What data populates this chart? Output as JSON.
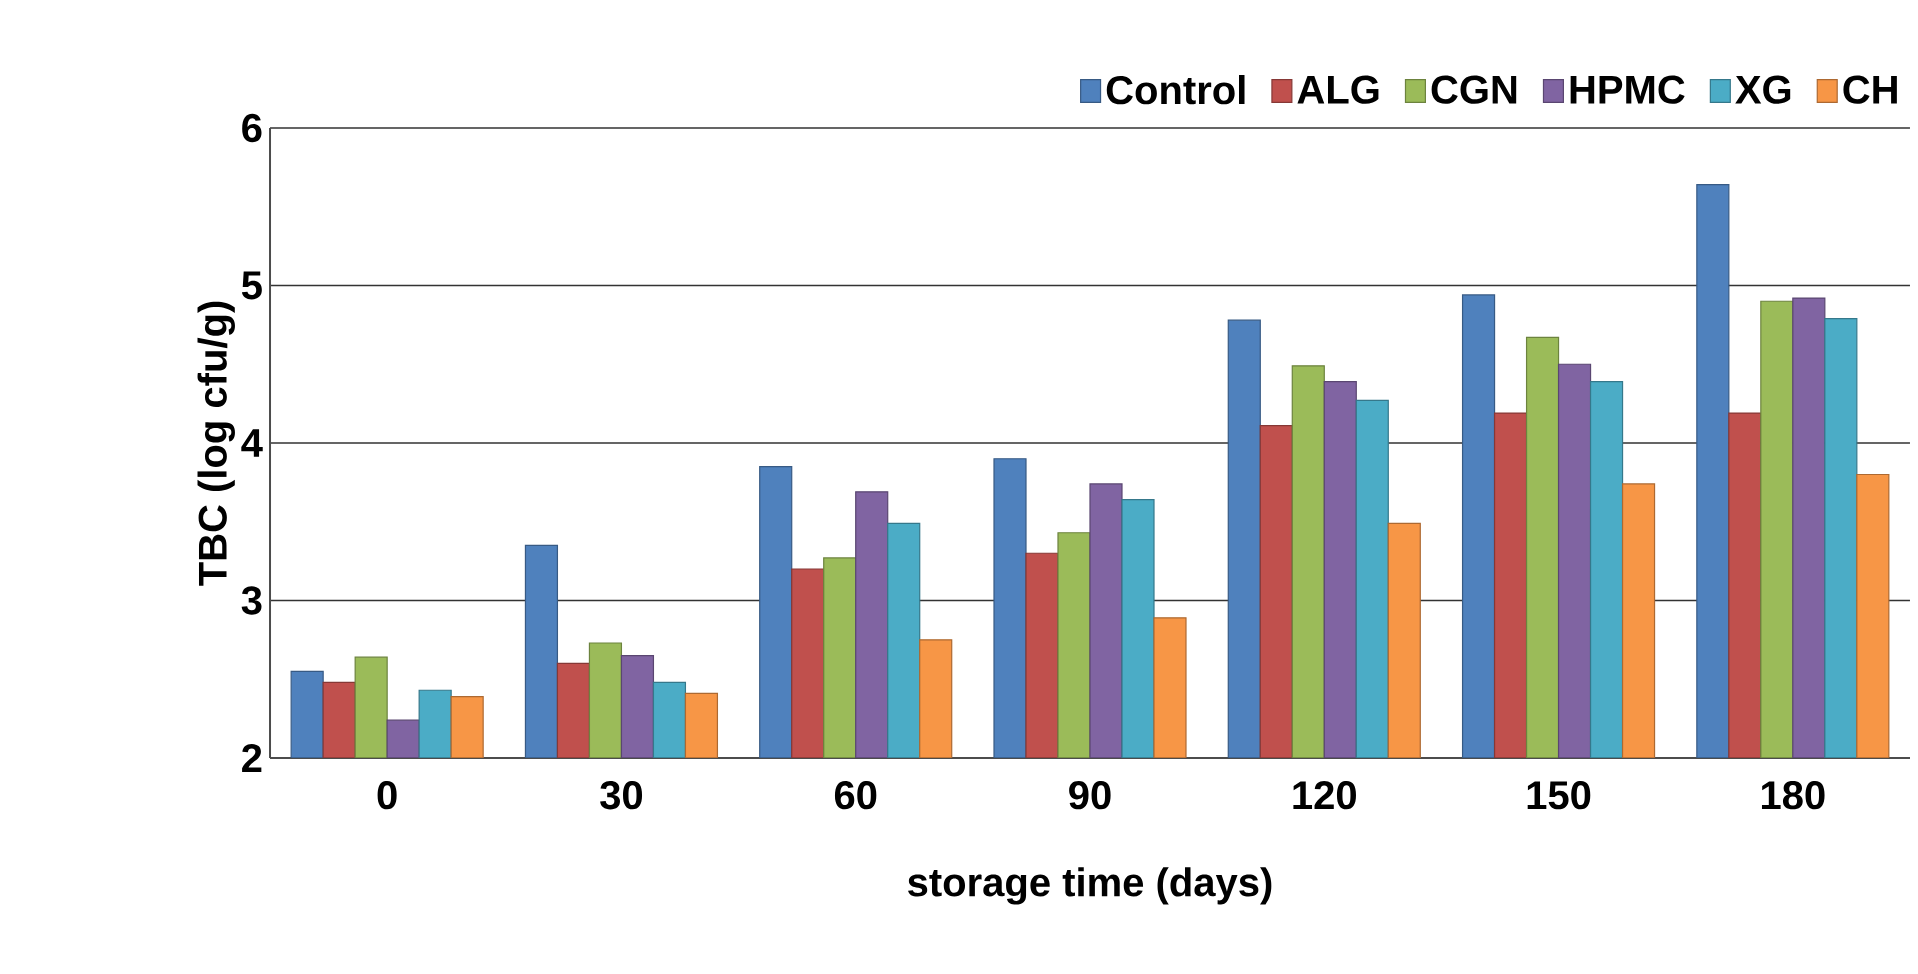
{
  "chart_data": {
    "type": "bar",
    "xlabel": "storage time (days)",
    "ylabel": "TBC (log cfu/g)",
    "categories": [
      "0",
      "30",
      "60",
      "90",
      "120",
      "150",
      "180"
    ],
    "series": [
      {
        "name": "Control",
        "color": "#4f81bd",
        "values": [
          2.55,
          3.35,
          3.85,
          3.9,
          4.78,
          4.94,
          5.64
        ]
      },
      {
        "name": "ALG",
        "color": "#c0504d",
        "values": [
          2.48,
          2.6,
          3.2,
          3.3,
          4.11,
          4.19,
          4.19
        ]
      },
      {
        "name": "CGN",
        "color": "#9bbb59",
        "values": [
          2.64,
          2.73,
          3.27,
          3.43,
          4.49,
          4.67,
          4.9
        ]
      },
      {
        "name": "HPMC",
        "color": "#8064a2",
        "values": [
          2.24,
          2.65,
          3.69,
          3.74,
          4.39,
          4.5,
          4.92
        ]
      },
      {
        "name": "XG",
        "color": "#4bacc6",
        "values": [
          2.43,
          2.48,
          3.49,
          3.64,
          4.27,
          4.39,
          4.79
        ]
      },
      {
        "name": "CH",
        "color": "#f79646",
        "values": [
          2.39,
          2.41,
          2.75,
          2.89,
          3.49,
          3.74,
          3.8
        ]
      }
    ],
    "ylim": [
      2,
      6
    ],
    "yticks": [
      2,
      3,
      4,
      5,
      6
    ],
    "grid": "y",
    "legend": "top right"
  }
}
